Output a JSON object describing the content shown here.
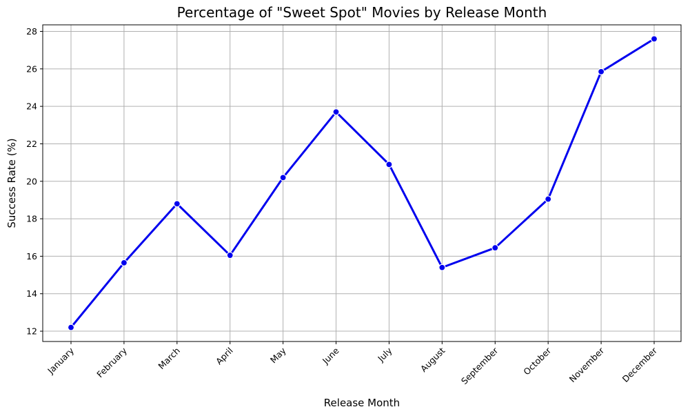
{
  "chart_data": {
    "type": "line",
    "title": "Percentage of \"Sweet Spot\" Movies by Release Month",
    "xlabel": "Release Month",
    "ylabel": "Success Rate (%)",
    "categories": [
      "January",
      "February",
      "March",
      "April",
      "May",
      "June",
      "July",
      "August",
      "September",
      "October",
      "November",
      "December"
    ],
    "series": [
      {
        "values": [
          12.2,
          15.65,
          18.8,
          16.05,
          20.2,
          23.7,
          20.9,
          15.4,
          16.45,
          19.05,
          25.85,
          27.6
        ],
        "color": "#0000ee",
        "marker": "circle"
      }
    ],
    "ylim": [
      11.45,
      28.35
    ],
    "yticks": [
      12,
      14,
      16,
      18,
      20,
      22,
      24,
      26,
      28
    ],
    "grid": true,
    "legend": "none"
  }
}
